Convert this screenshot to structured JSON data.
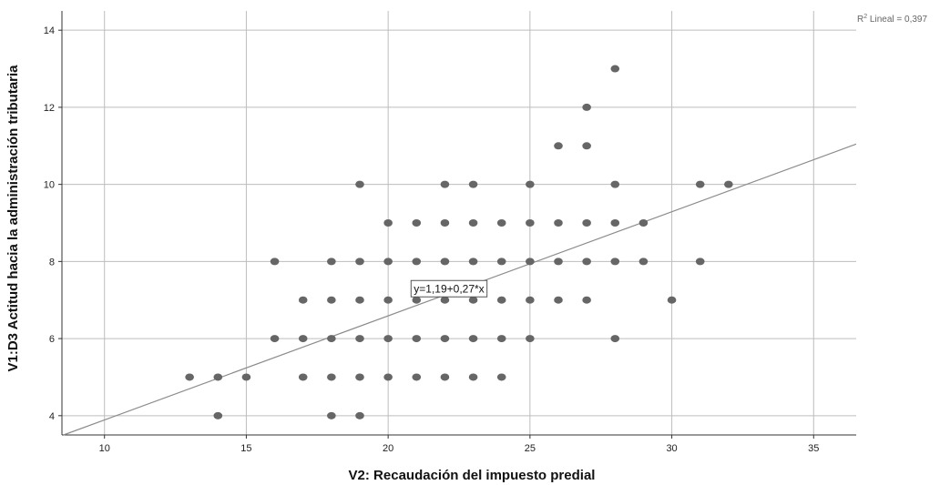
{
  "chart_data": {
    "type": "scatter",
    "xlabel": "V2: Recaudación del impuesto predial",
    "ylabel": "V1:D3 Actitud hacia la administración tributaria",
    "xlim": [
      8.5,
      36.5
    ],
    "ylim": [
      3.5,
      14.5
    ],
    "xticks": [
      10,
      15,
      20,
      25,
      30,
      35
    ],
    "yticks": [
      4,
      6,
      8,
      10,
      12,
      14
    ],
    "grid": true,
    "colors": {
      "points": "#666666",
      "line": "#8c8c8c",
      "grid": "#bdbdbd"
    },
    "points": [
      [
        13,
        5
      ],
      [
        14,
        5
      ],
      [
        14,
        4
      ],
      [
        15,
        5
      ],
      [
        16,
        8
      ],
      [
        16,
        6
      ],
      [
        17,
        7
      ],
      [
        17,
        6
      ],
      [
        17,
        5
      ],
      [
        18,
        8
      ],
      [
        18,
        7
      ],
      [
        18,
        6
      ],
      [
        18,
        5
      ],
      [
        18,
        4
      ],
      [
        19,
        10
      ],
      [
        19,
        8
      ],
      [
        19,
        7
      ],
      [
        19,
        6
      ],
      [
        19,
        5
      ],
      [
        19,
        4
      ],
      [
        20,
        9
      ],
      [
        20,
        8
      ],
      [
        20,
        7
      ],
      [
        20,
        6
      ],
      [
        20,
        5
      ],
      [
        21,
        9
      ],
      [
        21,
        8
      ],
      [
        21,
        7
      ],
      [
        21,
        6
      ],
      [
        21,
        5
      ],
      [
        22,
        10
      ],
      [
        22,
        9
      ],
      [
        22,
        8
      ],
      [
        22,
        7
      ],
      [
        22,
        6
      ],
      [
        22,
        5
      ],
      [
        23,
        10
      ],
      [
        23,
        9
      ],
      [
        23,
        8
      ],
      [
        23,
        7
      ],
      [
        23,
        6
      ],
      [
        23,
        5
      ],
      [
        24,
        9
      ],
      [
        24,
        8
      ],
      [
        24,
        7
      ],
      [
        24,
        6
      ],
      [
        24,
        5
      ],
      [
        25,
        10
      ],
      [
        25,
        9
      ],
      [
        25,
        8
      ],
      [
        25,
        7
      ],
      [
        25,
        6
      ],
      [
        26,
        11
      ],
      [
        26,
        9
      ],
      [
        26,
        8
      ],
      [
        26,
        7
      ],
      [
        27,
        12
      ],
      [
        27,
        11
      ],
      [
        27,
        9
      ],
      [
        27,
        8
      ],
      [
        27,
        7
      ],
      [
        28,
        13
      ],
      [
        28,
        10
      ],
      [
        28,
        9
      ],
      [
        28,
        8
      ],
      [
        28,
        6
      ],
      [
        29,
        9
      ],
      [
        29,
        8
      ],
      [
        30,
        7
      ],
      [
        31,
        10
      ],
      [
        31,
        8
      ],
      [
        32,
        10
      ]
    ],
    "fit": {
      "intercept": 1.19,
      "slope": 0.27,
      "label": "y=1,19+0,27*x"
    },
    "r2_label": {
      "prefix": "R",
      "sup": "2",
      "text": " Lineal = 0,397"
    }
  }
}
